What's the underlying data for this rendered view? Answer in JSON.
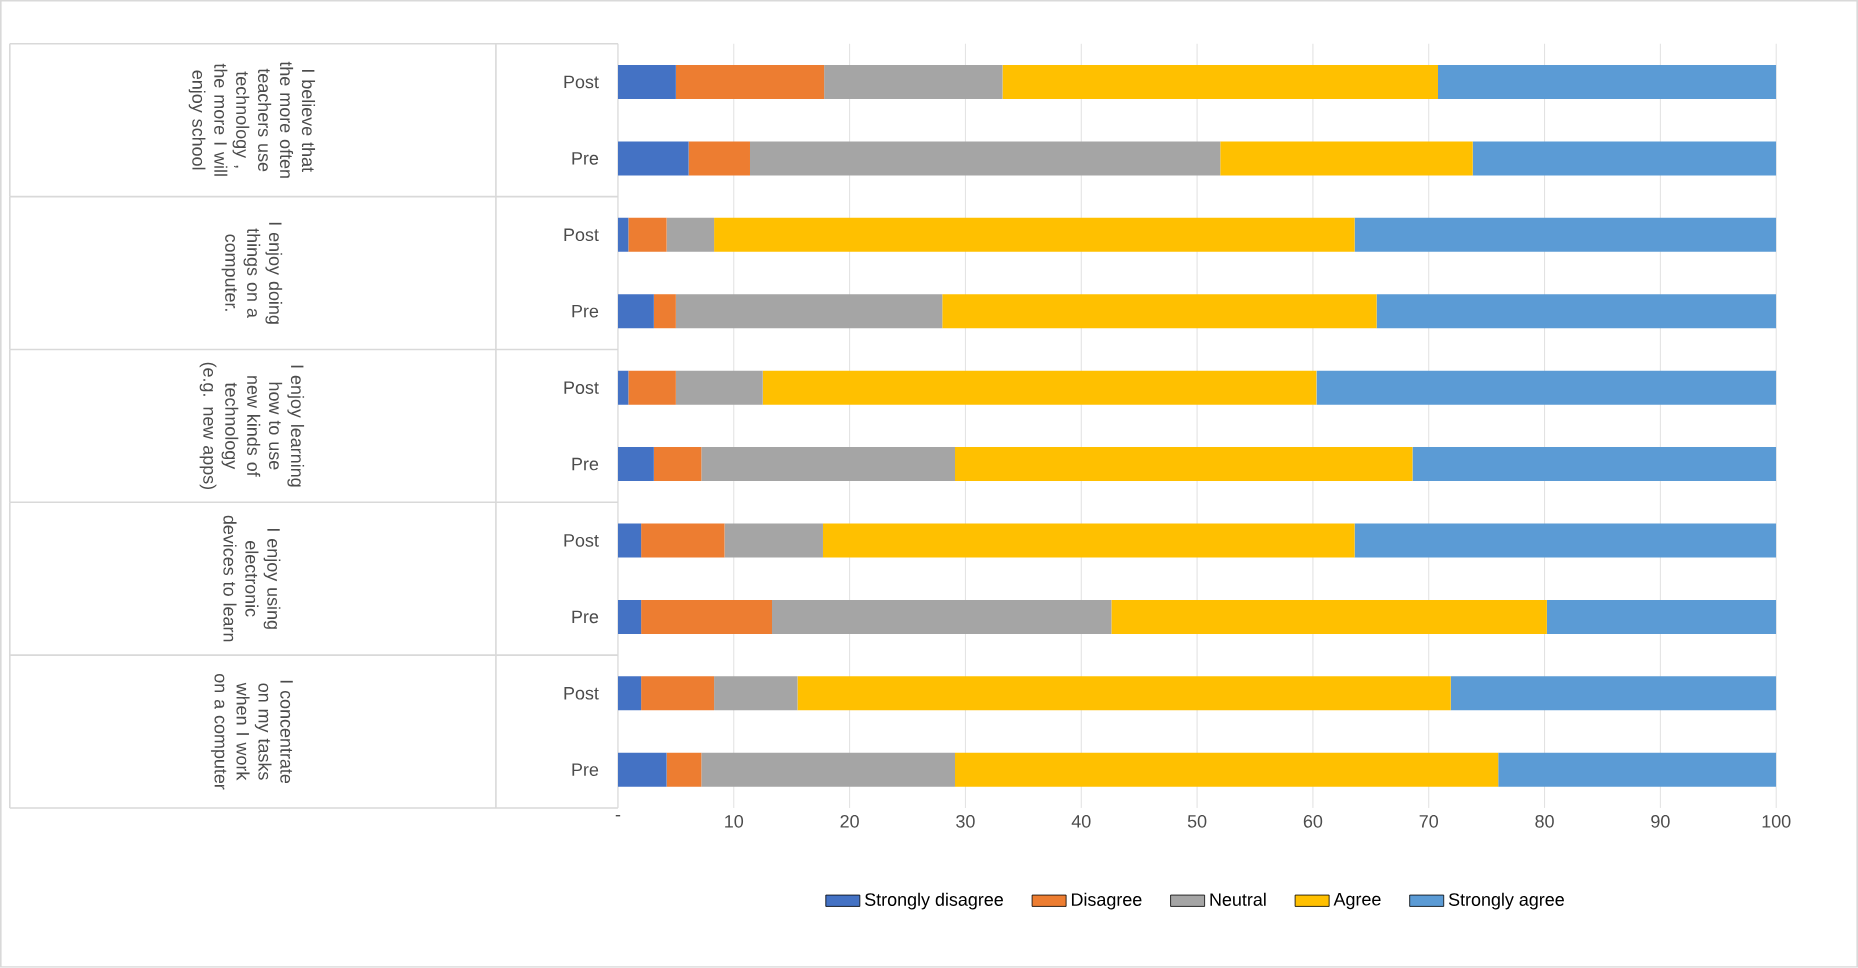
{
  "chart_data": {
    "type": "bar",
    "orientation": "horizontal",
    "stacked": true,
    "categories": [
      "Post",
      "Pre",
      "Post",
      "Pre",
      "Post",
      "Pre",
      "Post",
      "Pre",
      "Post",
      "Pre"
    ],
    "annotations": [
      "I believe that the more often teachers use technology , the more I will enjoy school",
      "I enjoy doing things on a computer.",
      "I enjoy learning how to use new kinds of technology (e.g. new apps)",
      "I enjoy using electronic devices to learn",
      "I concentrate on my tasks when I work on a computer"
    ],
    "series": [
      {
        "name": "Strongly disagree",
        "color": "#4472c4",
        "values": [
          5.0,
          6.1,
          0.9,
          3.1,
          0.9,
          3.1,
          2.0,
          2.0,
          2.0,
          4.2
        ]
      },
      {
        "name": "Disagree",
        "color": "#ed7d31",
        "values": [
          12.8,
          5.3,
          3.3,
          1.9,
          4.1,
          4.1,
          7.2,
          11.3,
          6.3,
          3.0
        ]
      },
      {
        "name": "Neutral",
        "color": "#a5a5a5",
        "values": [
          15.4,
          40.6,
          4.1,
          23.0,
          7.5,
          21.9,
          8.5,
          29.3,
          7.2,
          21.9
        ]
      },
      {
        "name": "Agree",
        "color": "#ffc000",
        "values": [
          37.6,
          21.8,
          55.3,
          37.5,
          47.8,
          39.5,
          45.9,
          37.6,
          56.4,
          46.9
        ]
      },
      {
        "name": "Strongly agree",
        "color": "#5b9bd5",
        "values": [
          29.2,
          26.2,
          36.4,
          34.5,
          39.7,
          31.4,
          36.4,
          19.8,
          28.1,
          24.0
        ]
      }
    ],
    "xlim": [
      0,
      100
    ],
    "xticks": [
      {
        "value": 0,
        "label": "-"
      },
      10,
      20,
      30,
      40,
      50,
      60,
      70,
      80,
      90,
      100
    ],
    "grid": "x",
    "legend": "bottom"
  }
}
